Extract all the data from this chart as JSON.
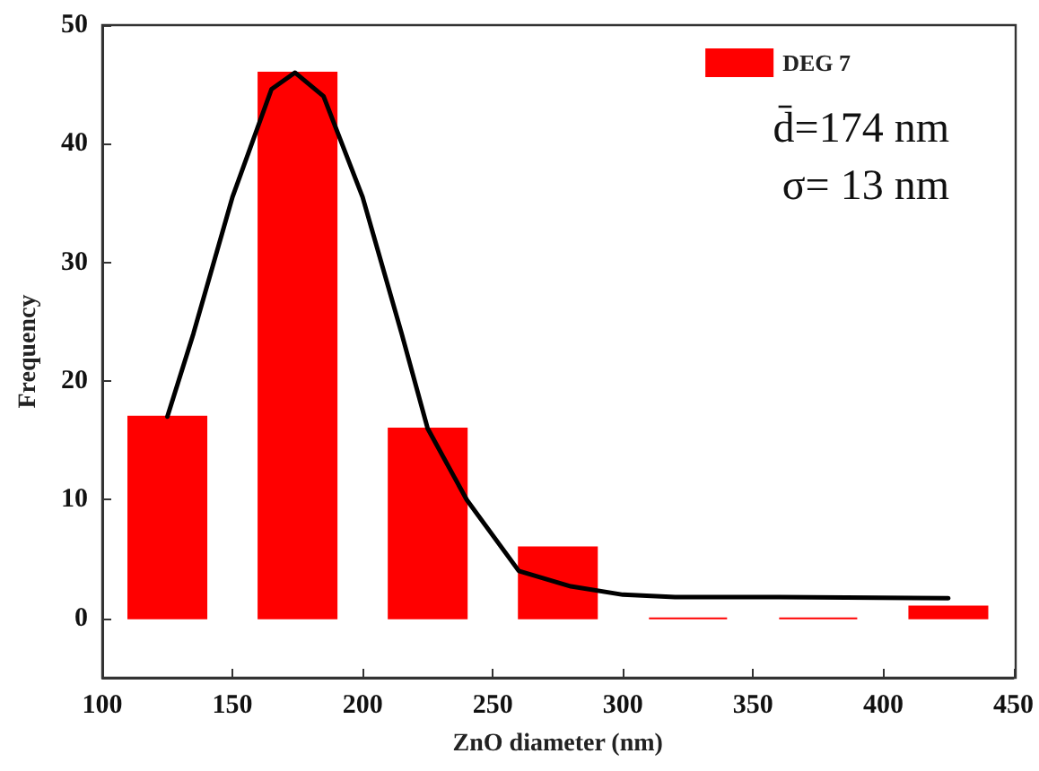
{
  "chart_data": {
    "type": "bar",
    "xlabel": "ZnO diameter (nm)",
    "ylabel": "Frequency",
    "x": [
      125,
      175,
      225,
      275,
      325,
      375,
      425
    ],
    "series": [
      {
        "name": "DEG 7",
        "color": "#ff0000",
        "values": [
          17,
          46,
          16,
          6,
          0,
          0,
          1
        ]
      },
      {
        "type": "line",
        "color": "#000000",
        "marker": "none",
        "line_style": "solid",
        "x": [
          125,
          135,
          150,
          165,
          174,
          185,
          200,
          215,
          225,
          240,
          260,
          280,
          300,
          320,
          360,
          425
        ],
        "values": [
          17,
          24,
          35.5,
          44.6,
          46,
          44,
          35.5,
          24,
          16,
          10,
          4,
          2.7,
          2,
          1.8,
          1.8,
          1.7
        ]
      }
    ],
    "xlim": [
      100,
      450
    ],
    "xticks": [
      100,
      150,
      200,
      250,
      300,
      350,
      400,
      450
    ],
    "ylim": [
      -5,
      50
    ],
    "yticks": [
      0,
      10,
      20,
      30,
      40,
      50
    ],
    "annotations": [
      "d̄=174 nm",
      "σ= 13 nm"
    ],
    "legend": "top right",
    "grid": false
  }
}
